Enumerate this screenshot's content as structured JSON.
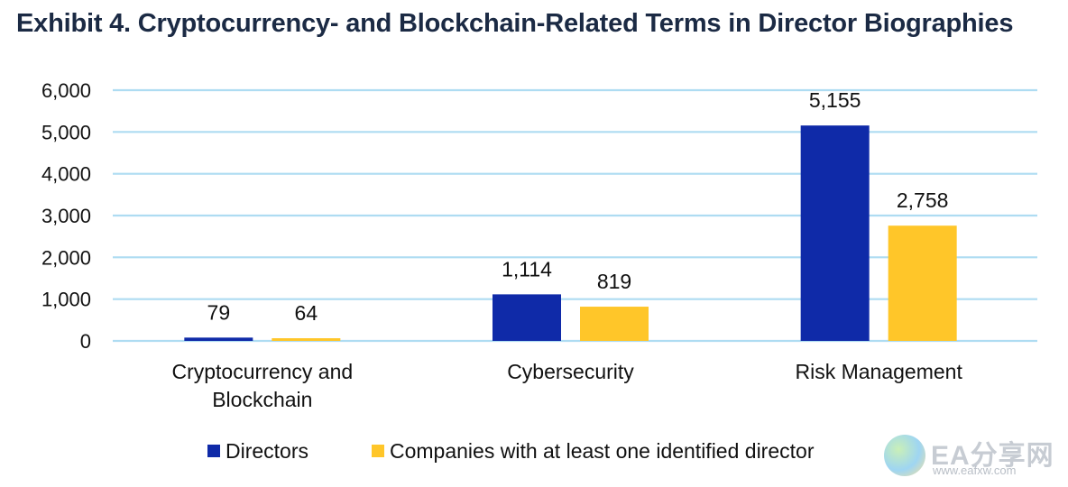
{
  "title": "Exhibit 4. Cryptocurrency- and Blockchain-Related Terms in Director Biographies",
  "chart_data": {
    "type": "bar",
    "categories": [
      [
        "Cryptocurrency and",
        "Blockchain"
      ],
      [
        "Cybersecurity"
      ],
      [
        "Risk Management"
      ]
    ],
    "series": [
      {
        "name": "Directors",
        "values": [
          79,
          1114,
          5155
        ],
        "labels": [
          "79",
          "1,114",
          "5,155"
        ],
        "color": "#0f2aa8"
      },
      {
        "name": "Companies with at least one identified director",
        "values": [
          64,
          819,
          2758
        ],
        "labels": [
          "64",
          "819",
          "2,758"
        ],
        "color": "#ffc629"
      }
    ],
    "ylim": [
      0,
      6000
    ],
    "yticks": [
      0,
      1000,
      2000,
      3000,
      4000,
      5000,
      6000
    ],
    "ytick_labels": [
      "0",
      "1,000",
      "2,000",
      "3,000",
      "4,000",
      "5,000",
      "6,000"
    ],
    "xlabel": "",
    "ylabel": "",
    "grid": true,
    "grid_color": "#aedcf2",
    "legend_position": "bottom"
  },
  "watermark": {
    "brand": "EA分享网",
    "url": "www.eafxw.com"
  }
}
